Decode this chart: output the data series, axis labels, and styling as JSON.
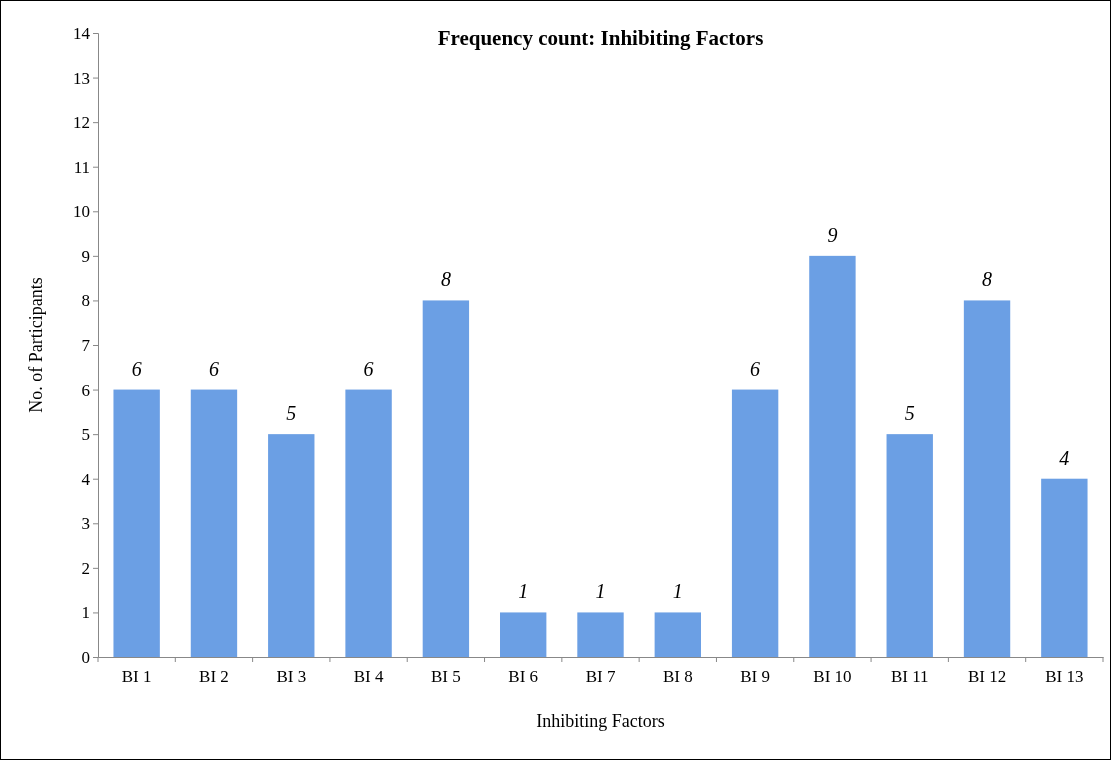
{
  "chart_data": {
    "type": "bar",
    "title": "Frequency count: Inhibiting Factors",
    "xlabel": "Inhibiting Factors",
    "ylabel": "No. of Participants",
    "categories": [
      "BI 1",
      "BI 2",
      "BI 3",
      "BI 4",
      "BI 5",
      "BI 6",
      "BI 7",
      "BI 8",
      "BI 9",
      "BI 10",
      "BI 11",
      "BI 12",
      "BI 13"
    ],
    "values": [
      6,
      6,
      5,
      6,
      8,
      1,
      1,
      1,
      6,
      9,
      5,
      8,
      4
    ],
    "color": "#6b9fe4",
    "ylim": [
      0,
      14
    ],
    "yticks": [
      0,
      1,
      2,
      3,
      4,
      5,
      6,
      7,
      8,
      9,
      10,
      11,
      12,
      13,
      14
    ],
    "data_labels": true
  }
}
